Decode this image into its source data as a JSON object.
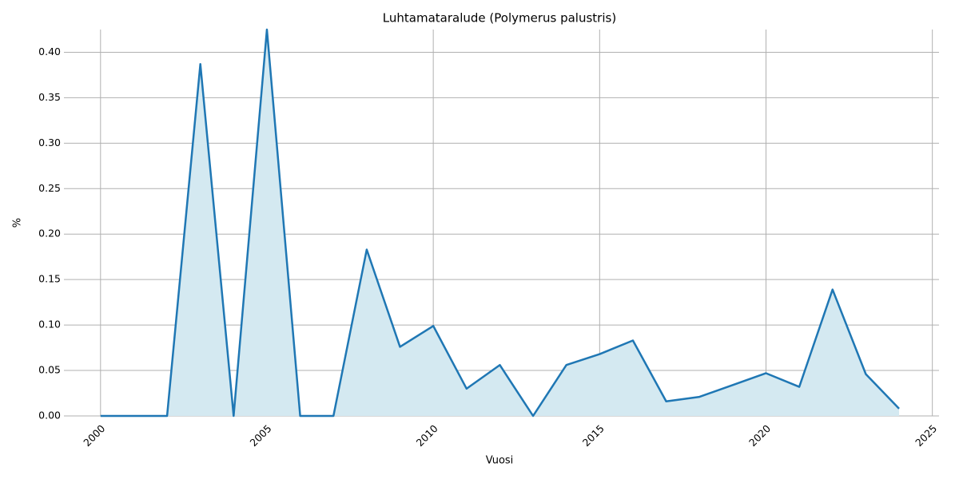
{
  "chart_data": {
    "type": "area-line",
    "title": "Luhtamataralude (Polymerus palustris)",
    "x_label": "Vuosi",
    "y_label": "%",
    "x": [
      2000,
      2001,
      2002,
      2003,
      2004,
      2005,
      2006,
      2007,
      2008,
      2009,
      2010,
      2011,
      2012,
      2013,
      2014,
      2015,
      2016,
      2017,
      2018,
      2019,
      2020,
      2021,
      2022,
      2023,
      2024
    ],
    "series": [
      {
        "color": "#1f77b4",
        "fill_color": "#d4e9f1",
        "values": [
          0,
          0,
          0,
          0.387,
          0,
          0.425,
          0,
          0,
          0.183,
          0.076,
          0.099,
          0.03,
          0.056,
          0,
          0.056,
          0.068,
          0.083,
          0.016,
          0.021,
          0.034,
          0.047,
          0.032,
          0.139,
          0.046,
          0.008
        ]
      }
    ],
    "xlim": [
      1998.9,
      2025.2
    ],
    "ylim": [
      0,
      0.425
    ],
    "xticks": [
      2000,
      2005,
      2010,
      2015,
      2020,
      2025
    ],
    "yticks": [
      {
        "value": 0,
        "label": "0.00"
      },
      {
        "value": 0.05,
        "label": "0.05"
      },
      {
        "value": 0.1,
        "label": "0.10"
      },
      {
        "value": 0.15,
        "label": "0.15"
      },
      {
        "value": 0.2,
        "label": "0.20"
      },
      {
        "value": 0.25,
        "label": "0.25"
      },
      {
        "value": 0.3,
        "label": "0.30"
      },
      {
        "value": 0.35,
        "label": "0.35"
      },
      {
        "value": 0.4,
        "label": "0.40"
      }
    ],
    "grid": true,
    "grid_color": "#b0b0b0"
  }
}
